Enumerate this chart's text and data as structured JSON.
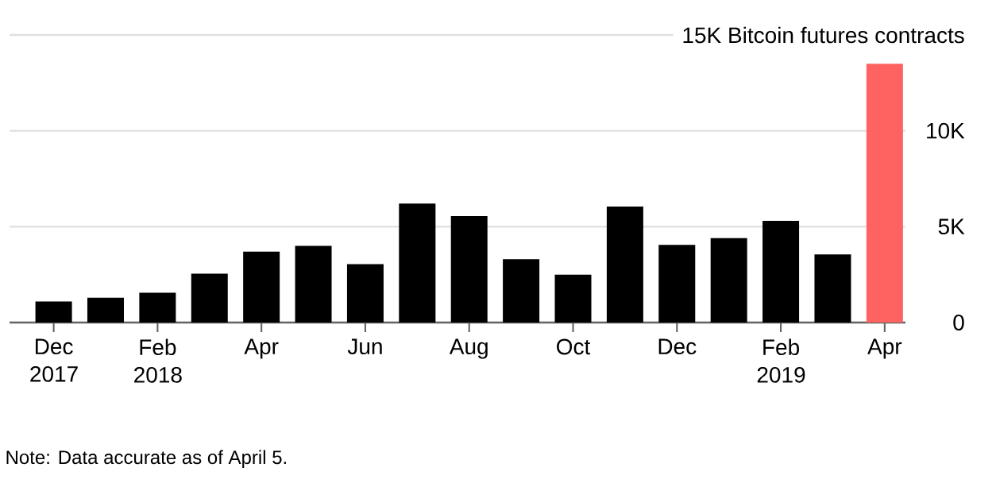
{
  "chart_data": {
    "type": "bar",
    "categories": [
      "Dec 2017",
      null,
      "Feb 2018",
      null,
      "Apr",
      null,
      "Jun",
      null,
      "Aug",
      null,
      "Oct",
      null,
      "Dec",
      null,
      "Feb 2019",
      null,
      "Apr"
    ],
    "values": [
      1100,
      1300,
      1550,
      2550,
      3700,
      4000,
      3050,
      6200,
      5550,
      3300,
      2500,
      6050,
      4050,
      4400,
      5300,
      3550,
      13500
    ],
    "colors": [
      "#000000",
      "#000000",
      "#000000",
      "#000000",
      "#000000",
      "#000000",
      "#000000",
      "#000000",
      "#000000",
      "#000000",
      "#000000",
      "#000000",
      "#000000",
      "#000000",
      "#000000",
      "#000000",
      "#ff6361"
    ],
    "ylim": [
      0,
      15000
    ],
    "yticks": [
      0,
      {
        "value": 5000,
        "label": "5K"
      },
      {
        "value": 10000,
        "label": "10K"
      },
      {
        "value": 15000,
        "label": "15K Bitcoin futures contracts"
      }
    ],
    "grid": "y",
    "annotations": [
      "Note: Data accurate as of April 5."
    ]
  }
}
